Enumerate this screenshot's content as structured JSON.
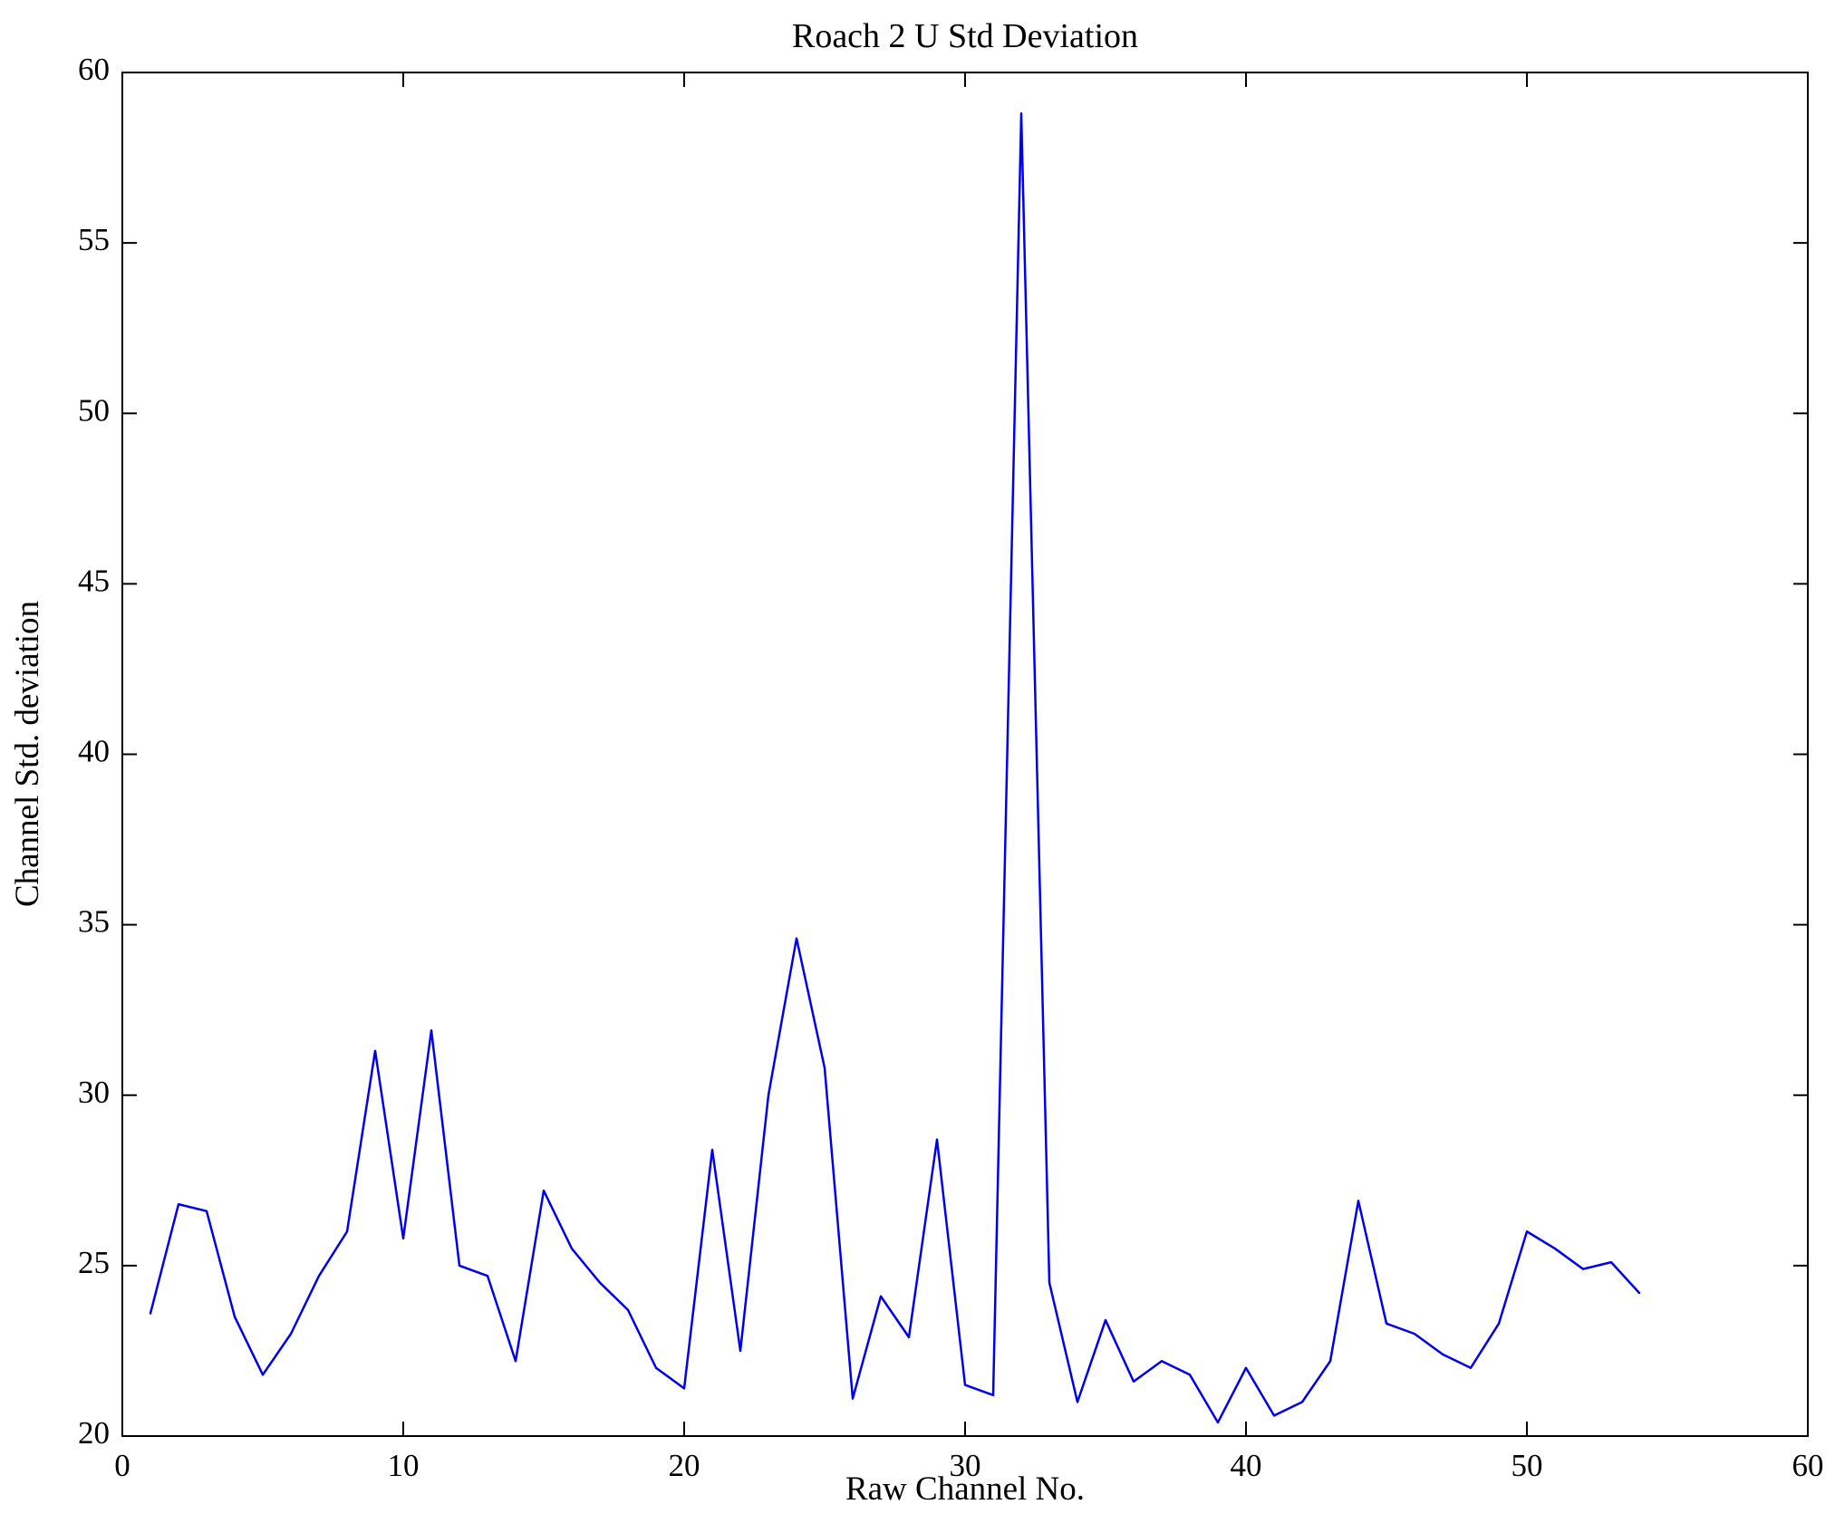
{
  "figure": {
    "background": "#ffffff",
    "frame_color": "#000000"
  },
  "chart_data": {
    "type": "line",
    "title": "Roach 2 U Std Deviation",
    "xlabel": "Raw Channel No.",
    "ylabel": "Channel Std. deviation",
    "xlim": [
      0,
      60
    ],
    "ylim": [
      20,
      60
    ],
    "xticks": [
      0,
      10,
      20,
      30,
      40,
      50,
      60
    ],
    "yticks": [
      20,
      25,
      30,
      35,
      40,
      45,
      50,
      55,
      60
    ],
    "grid": false,
    "legend": false,
    "line_color": "#0000ee",
    "line_width": 2.5,
    "x": [
      1,
      2,
      3,
      4,
      5,
      6,
      7,
      8,
      9,
      10,
      11,
      12,
      13,
      14,
      15,
      16,
      17,
      18,
      19,
      20,
      21,
      22,
      23,
      24,
      25,
      26,
      27,
      28,
      29,
      30,
      31,
      32,
      33,
      34,
      35,
      36,
      37,
      38,
      39,
      40,
      41,
      42,
      43,
      44,
      45,
      46,
      47,
      48,
      49,
      50,
      51,
      52,
      53,
      54
    ],
    "y": [
      23.6,
      26.8,
      26.6,
      23.5,
      21.8,
      23.0,
      24.7,
      26.0,
      31.3,
      25.8,
      31.9,
      25.0,
      24.7,
      22.2,
      27.2,
      25.5,
      24.5,
      23.7,
      22.0,
      21.4,
      28.4,
      22.5,
      30.0,
      34.6,
      30.8,
      21.1,
      24.1,
      22.9,
      28.7,
      21.5,
      21.2,
      58.8,
      24.5,
      21.0,
      23.4,
      21.6,
      22.2,
      21.8,
      20.4,
      22.0,
      20.6,
      21.0,
      22.2,
      26.9,
      23.3,
      23.0,
      22.4,
      22.0,
      23.3,
      26.0,
      25.5,
      24.9,
      25.1,
      24.2
    ]
  }
}
